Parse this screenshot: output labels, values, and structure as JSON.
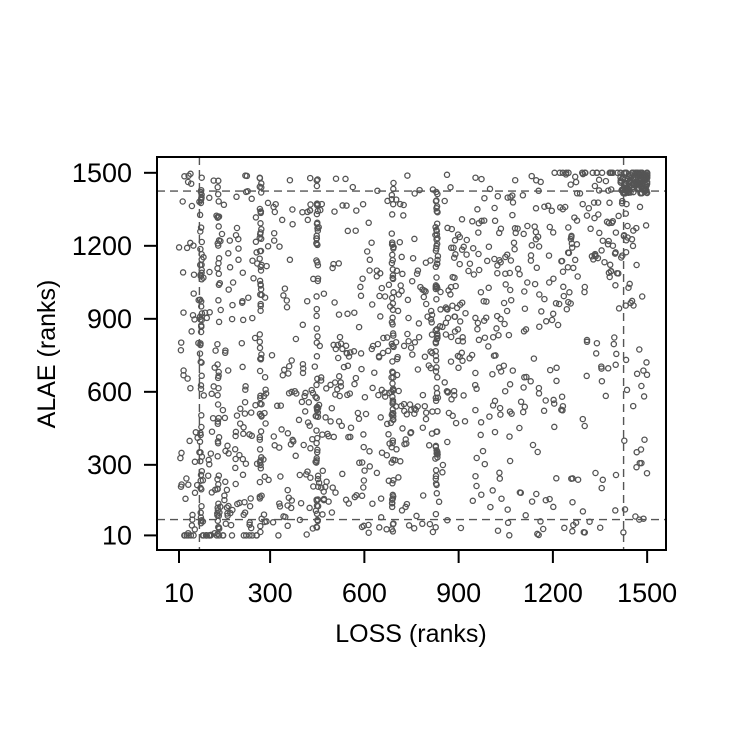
{
  "chart_data": {
    "type": "scatter",
    "xlabel": "LOSS (ranks)",
    "ylabel": "ALAE (ranks)",
    "xlim": [
      -60,
      1560
    ],
    "ylim": [
      -50,
      1565
    ],
    "x_ticks": [
      10,
      300,
      600,
      900,
      1200,
      1500
    ],
    "y_ticks": [
      10,
      300,
      600,
      900,
      1200,
      1500
    ],
    "x_tick_labels": [
      "10",
      "300",
      "600",
      "900",
      "1200",
      "1500"
    ],
    "y_tick_labels": [
      "10",
      "300",
      "600",
      "900",
      "1200",
      "1500"
    ],
    "reference_lines": {
      "x": [
        75,
        1425
      ],
      "y": [
        75,
        1425
      ]
    },
    "grid": false,
    "legend": "none",
    "point_color": "#555555",
    "n_points": 1500,
    "seed": 1500,
    "point_marker": "open-circle",
    "features": {
      "tied_rank_columns_x": [
        80,
        135,
        270,
        450,
        690,
        830
      ],
      "upper_tail_cluster": [
        1460,
        1460
      ]
    }
  }
}
